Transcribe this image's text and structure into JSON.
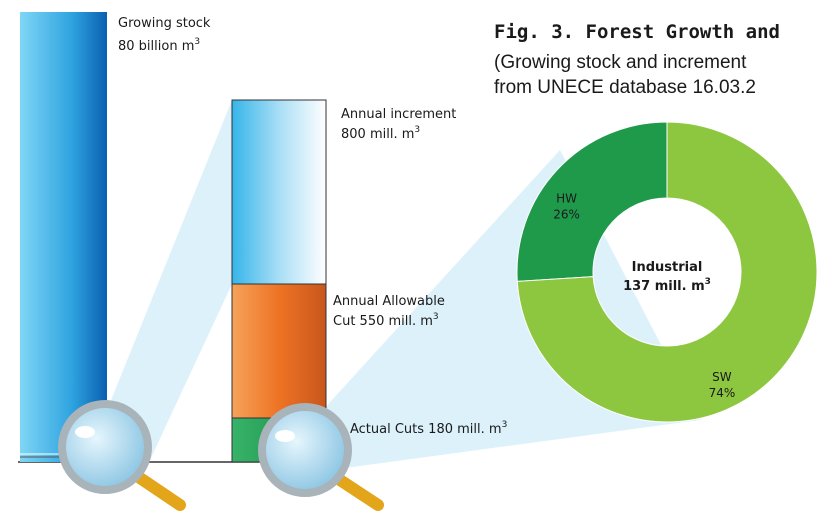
{
  "title": "Fig. 3. Forest Growth and",
  "subtitle": [
    "(Growing stock and increment",
    "from UNECE database 16.03.2"
  ],
  "growing_stock": {
    "label": "Growing stock",
    "amount": "80 billion  m",
    "unit_power": "3"
  },
  "annual_increment": {
    "label": "Annual increment",
    "amount": "800 mill. m",
    "unit_power": "3"
  },
  "allowable_cut": {
    "label": "Annual Allowable",
    "amount": "Cut 550 mill. m",
    "unit_power": "3"
  },
  "actual_cuts": {
    "amount": "Actual Cuts 180 mill. m",
    "unit_power": "3"
  },
  "chart_data": {
    "type": "donut",
    "categories": [
      "HW",
      "SW"
    ],
    "values": [
      26,
      74
    ],
    "value_labels": [
      "26%",
      "74%"
    ],
    "colors": [
      "#1f9a4b",
      "#8dc63f"
    ],
    "center_label": "Industrial",
    "center_amount": "137 mill. m",
    "center_unit_power": "3"
  }
}
